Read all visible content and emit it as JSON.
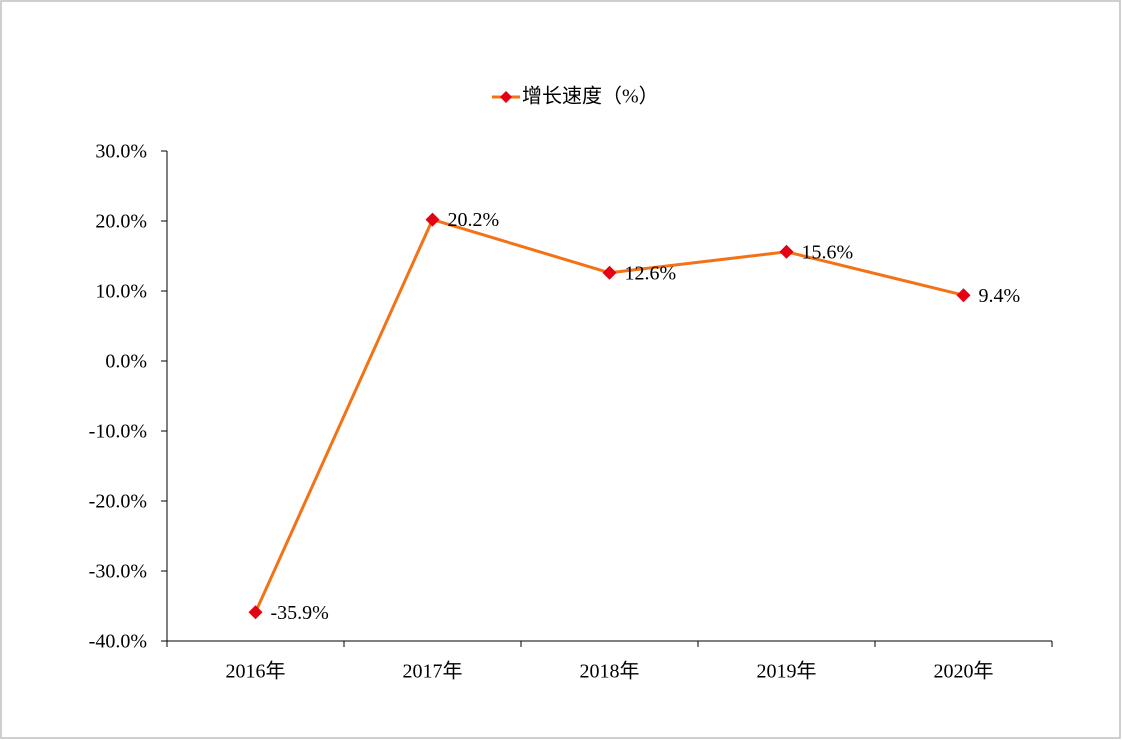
{
  "chart_data": {
    "type": "line",
    "categories": [
      "2016年",
      "2017年",
      "2018年",
      "2019年",
      "2020年"
    ],
    "series": [
      {
        "name": "增长速度（%）",
        "color": "#f47216",
        "marker_color": "#e60012",
        "values": [
          -35.9,
          20.2,
          12.6,
          15.6,
          9.4
        ],
        "value_labels": [
          "-35.9%",
          "20.2%",
          "12.6%",
          "15.6%",
          "9.4%"
        ]
      }
    ],
    "ylim": [
      -40,
      30
    ],
    "yticks": [
      {
        "value": -40,
        "label": "-40.0%"
      },
      {
        "value": -30,
        "label": "-30.0%"
      },
      {
        "value": -20,
        "label": "-20.0%"
      },
      {
        "value": -10,
        "label": "-10.0%"
      },
      {
        "value": 0,
        "label": "0.0%"
      },
      {
        "value": 10,
        "label": "10.0%"
      },
      {
        "value": 20,
        "label": "20.0%"
      },
      {
        "value": 30,
        "label": "30.0%"
      }
    ],
    "grid": false,
    "legend": "top"
  }
}
